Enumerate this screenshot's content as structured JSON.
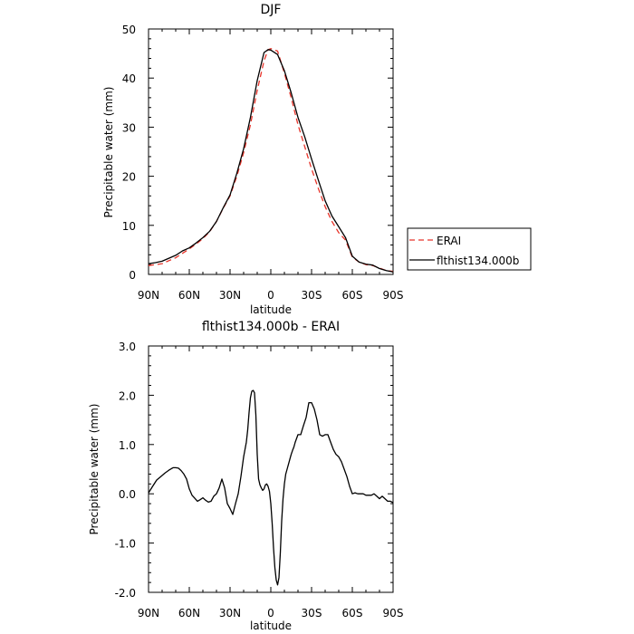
{
  "charts": [
    {
      "title": "DJF",
      "xlabel": "latitude",
      "ylabel": "Precipitable water (mm)",
      "x_ticks": [
        {
          "x": 90,
          "label": "90N"
        },
        {
          "x": 60,
          "label": "60N"
        },
        {
          "x": 30,
          "label": "30N"
        },
        {
          "x": 0,
          "label": "0"
        },
        {
          "x": -30,
          "label": "30S"
        },
        {
          "x": -60,
          "label": "60S"
        },
        {
          "x": -90,
          "label": "90S"
        }
      ],
      "y_ticks": [
        {
          "y": 0,
          "label": "0"
        },
        {
          "y": 10,
          "label": "10"
        },
        {
          "y": 20,
          "label": "20"
        },
        {
          "y": 30,
          "label": "30"
        },
        {
          "y": 40,
          "label": "40"
        },
        {
          "y": 50,
          "label": "50"
        }
      ]
    },
    {
      "title": "flthist134.000b - ERAI",
      "xlabel": "latitude",
      "ylabel": "Precipitable water (mm)",
      "x_ticks": [
        {
          "x": 90,
          "label": "90N"
        },
        {
          "x": 60,
          "label": "60N"
        },
        {
          "x": 30,
          "label": "30N"
        },
        {
          "x": 0,
          "label": "0"
        },
        {
          "x": -30,
          "label": "30S"
        },
        {
          "x": -60,
          "label": "60S"
        },
        {
          "x": -90,
          "label": "90S"
        }
      ],
      "y_ticks": [
        {
          "y": -2,
          "label": "-2.0"
        },
        {
          "y": -1,
          "label": "-1.0"
        },
        {
          "y": 0,
          "label": "0.0"
        },
        {
          "y": 1,
          "label": "1.0"
        },
        {
          "y": 2,
          "label": "2.0"
        },
        {
          "y": 3,
          "label": "3.0"
        }
      ]
    }
  ],
  "legend": [
    {
      "label": "ERAI",
      "color": "#e8342a",
      "dash": "dashed"
    },
    {
      "label": "flthist134.000b",
      "color": "#000000",
      "dash": "solid"
    }
  ],
  "chart_data": [
    {
      "type": "line",
      "title": "DJF",
      "xlabel": "latitude",
      "ylabel": "Precipitable water (mm)",
      "xlim": [
        90,
        -90
      ],
      "ylim": [
        0,
        50
      ],
      "grid": false,
      "legend_position": "right",
      "series": [
        {
          "name": "ERAI",
          "color": "#e8342a",
          "style": "dashed",
          "x": [
            90,
            85,
            80,
            75,
            70,
            65,
            60,
            55,
            50,
            45,
            40,
            35,
            30,
            25,
            20,
            15,
            10,
            5,
            2,
            0,
            -5,
            -10,
            -15,
            -20,
            -25,
            -30,
            -35,
            -40,
            -45,
            -50,
            -55,
            -60,
            -65,
            -70,
            -75,
            -80,
            -85,
            -90
          ],
          "y": [
            1.8,
            2.0,
            2.2,
            2.8,
            3.4,
            4.3,
            5.2,
            6.2,
            7.3,
            8.7,
            10.8,
            13.5,
            16.0,
            20.0,
            24.8,
            30.5,
            37.5,
            43.5,
            45.8,
            46.0,
            45.5,
            41.0,
            36.0,
            30.5,
            26.0,
            21.5,
            17.5,
            13.8,
            10.8,
            8.5,
            7.0,
            3.5,
            2.5,
            2.0,
            1.8,
            1.3,
            0.8,
            0.6
          ]
        },
        {
          "name": "flthist134.000b",
          "color": "#000000",
          "style": "solid",
          "x": [
            90,
            85,
            80,
            75,
            70,
            65,
            60,
            55,
            50,
            45,
            40,
            35,
            30,
            25,
            20,
            15,
            10,
            5,
            2,
            0,
            -5,
            -10,
            -15,
            -20,
            -25,
            -30,
            -35,
            -40,
            -45,
            -50,
            -55,
            -60,
            -65,
            -70,
            -75,
            -80,
            -85,
            -90
          ],
          "y": [
            2.2,
            2.4,
            2.7,
            3.3,
            3.9,
            4.8,
            5.4,
            6.4,
            7.5,
            8.8,
            10.8,
            13.6,
            16.2,
            20.6,
            25.6,
            32.0,
            39.5,
            45.2,
            45.8,
            45.7,
            44.8,
            41.5,
            37.0,
            32.0,
            28.0,
            23.5,
            19.2,
            15.0,
            11.9,
            9.7,
            7.5,
            3.7,
            2.5,
            2.1,
            1.9,
            1.2,
            0.8,
            0.5
          ]
        }
      ]
    },
    {
      "type": "line",
      "title": "flthist134.000b - ERAI",
      "xlabel": "latitude",
      "ylabel": "Precipitable water (mm)",
      "xlim": [
        90,
        -90
      ],
      "ylim": [
        -2.0,
        3.0
      ],
      "grid": false,
      "series": [
        {
          "name": "flthist134.000b - ERAI",
          "color": "#000000",
          "style": "solid",
          "x": [
            90,
            87,
            84,
            81,
            78,
            75,
            72,
            70,
            68,
            66,
            64,
            62,
            60,
            58,
            56,
            54,
            52,
            50,
            48,
            46,
            44,
            42,
            40,
            38,
            36,
            34,
            32,
            30,
            28,
            26,
            24,
            22,
            20,
            18,
            17,
            16,
            15,
            14,
            13,
            12,
            11,
            10,
            9,
            8,
            7,
            6,
            5,
            4,
            3,
            2,
            1,
            0,
            -1,
            -2,
            -3,
            -4,
            -5,
            -6,
            -7,
            -8,
            -9,
            -10,
            -11,
            -12,
            -13,
            -14,
            -15,
            -16,
            -17,
            -18,
            -20,
            -22,
            -24,
            -26,
            -28,
            -30,
            -32,
            -34,
            -36,
            -38,
            -40,
            -42,
            -44,
            -46,
            -48,
            -50,
            -52,
            -54,
            -56,
            -58,
            -60,
            -62,
            -64,
            -66,
            -68,
            -70,
            -72,
            -74,
            -76,
            -78,
            -80,
            -82,
            -84,
            -86,
            -88,
            -90
          ],
          "y": [
            0.02,
            0.15,
            0.28,
            0.35,
            0.42,
            0.48,
            0.53,
            0.53,
            0.52,
            0.47,
            0.4,
            0.3,
            0.1,
            -0.03,
            -0.09,
            -0.15,
            -0.12,
            -0.08,
            -0.13,
            -0.17,
            -0.15,
            -0.05,
            0.0,
            0.12,
            0.3,
            0.12,
            -0.2,
            -0.3,
            -0.42,
            -0.2,
            0.0,
            0.35,
            0.75,
            1.05,
            1.3,
            1.65,
            1.95,
            2.08,
            2.1,
            2.05,
            1.6,
            0.8,
            0.3,
            0.18,
            0.12,
            0.07,
            0.1,
            0.18,
            0.2,
            0.15,
            0.05,
            -0.2,
            -0.6,
            -1.1,
            -1.5,
            -1.75,
            -1.85,
            -1.7,
            -1.2,
            -0.55,
            -0.1,
            0.2,
            0.4,
            0.5,
            0.6,
            0.7,
            0.8,
            0.88,
            0.95,
            1.05,
            1.2,
            1.2,
            1.38,
            1.55,
            1.85,
            1.85,
            1.72,
            1.5,
            1.2,
            1.17,
            1.2,
            1.2,
            1.05,
            0.9,
            0.8,
            0.75,
            0.65,
            0.5,
            0.35,
            0.15,
            0.0,
            0.02,
            0.0,
            0.0,
            0.0,
            -0.03,
            -0.03,
            -0.03,
            0.0,
            -0.05,
            -0.1,
            -0.05,
            -0.1,
            -0.15,
            -0.15,
            -0.18
          ]
        }
      ]
    }
  ]
}
